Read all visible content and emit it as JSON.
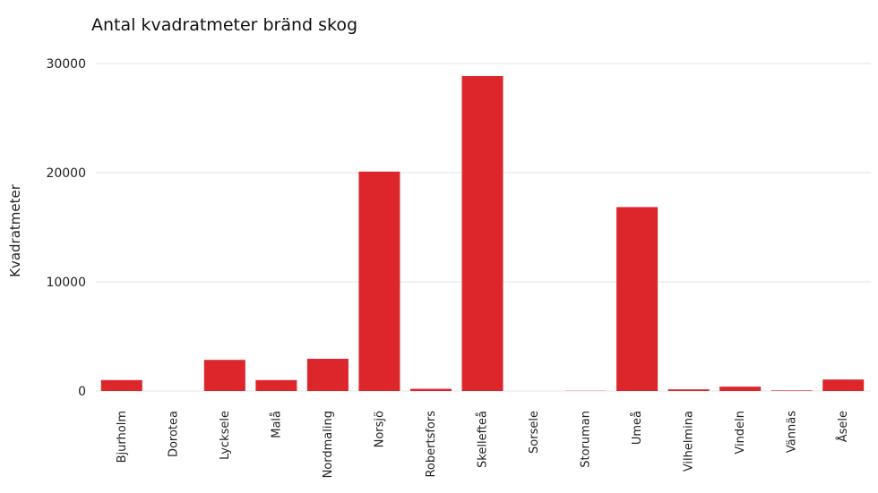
{
  "chart_data": {
    "type": "bar",
    "title": "Antal kvadratmeter bränd skog",
    "xlabel": "",
    "ylabel": "Kvadratmeter",
    "categories": [
      "Bjurholm",
      "Dorotea",
      "Lycksele",
      "Malå",
      "Nordmaling",
      "Norsjö",
      "Robertsfors",
      "Skellefteå",
      "Sorsele",
      "Storuman",
      "Umeå",
      "Vilhelmina",
      "Vindeln",
      "Vännäs",
      "Åsele"
    ],
    "values": [
      1000,
      0,
      2850,
      1000,
      2950,
      20100,
      200,
      28850,
      0,
      20,
      16850,
      150,
      400,
      50,
      1050
    ],
    "yticks": [
      "0",
      "10000",
      "20000",
      "30000"
    ],
    "ytick_values": [
      0,
      10000,
      20000,
      30000
    ],
    "ylim": [
      0,
      30000
    ],
    "grid": true,
    "legend": "none",
    "bar_color": "#dc262b",
    "grid_color": "#e3e3e3"
  }
}
